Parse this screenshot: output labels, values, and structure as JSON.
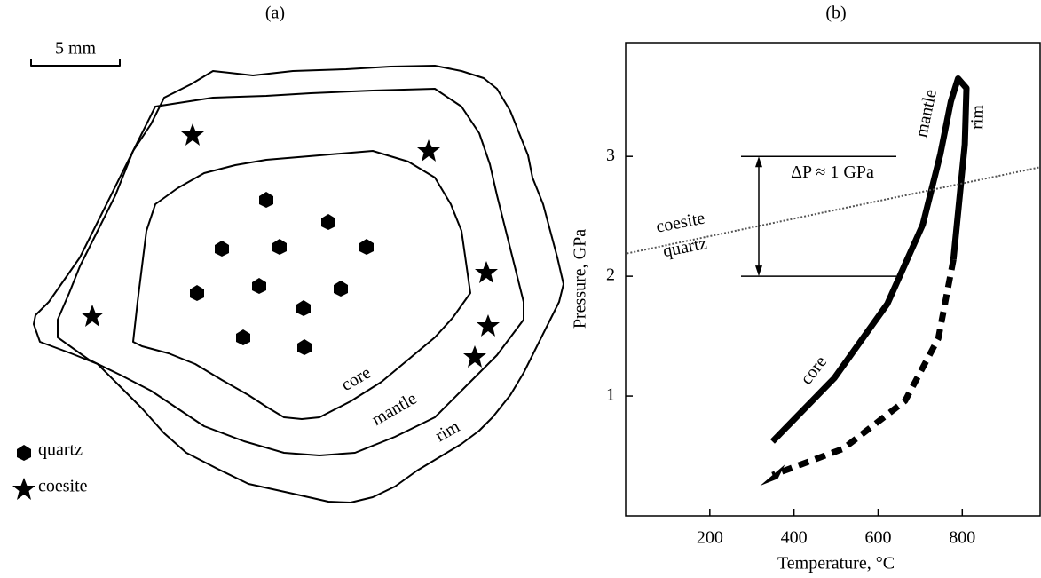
{
  "panel_a": {
    "label": "(a)",
    "scale": "5 mm",
    "zones": [
      "core",
      "mantle",
      "rim"
    ],
    "legend": [
      "quartz",
      "coesite"
    ]
  },
  "chart_data": {
    "type": "line",
    "panel_label": "(b)",
    "xlabel": "Temperature, °C",
    "ylabel": "Pressure, GPa",
    "xlim": [
      0,
      985
    ],
    "ylim": [
      0,
      3.95
    ],
    "xticks": [
      200,
      400,
      600,
      800
    ],
    "yticks": [
      1,
      2,
      3
    ],
    "series": [
      {
        "color": "#000000",
        "style": "solid",
        "x": [
          349,
          496,
          622,
          706,
          748,
          773,
          790,
          810,
          806,
          779
        ],
        "values": [
          0.62,
          1.15,
          1.77,
          2.43,
          3.02,
          3.46,
          3.65,
          3.57,
          3.1,
          2.14
        ]
      },
      {
        "color": "#000000",
        "style": "dashed",
        "x": [
          779,
          743,
          664,
          517,
          349
        ],
        "values": [
          2.14,
          1.48,
          0.96,
          0.56,
          0.34
        ]
      },
      {
        "color": "#555555",
        "style": "dotted",
        "x": [
          3,
          985
        ],
        "values": [
          2.19,
          2.91
        ]
      }
    ],
    "annotations": [
      "core",
      "mantle",
      "rim",
      "coesite",
      "quartz"
    ],
    "delta_p": {
      "label": "ΔP ≈ 1 GPa",
      "from": 2,
      "to": 3
    }
  }
}
